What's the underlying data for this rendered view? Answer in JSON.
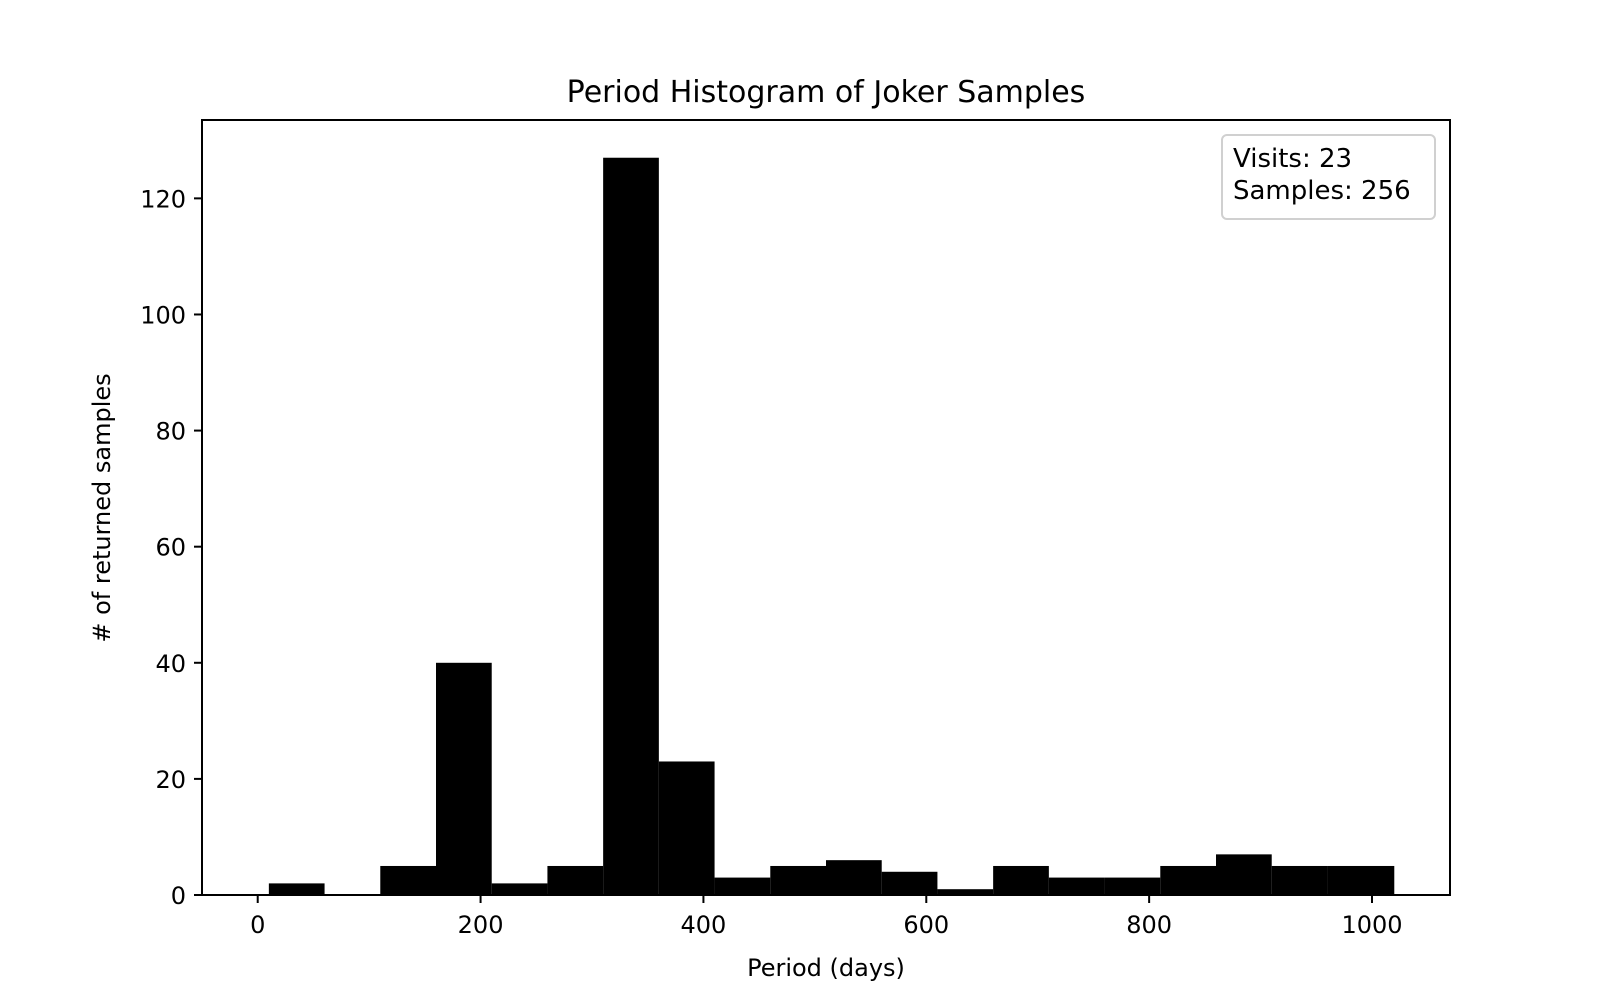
{
  "chart_data": {
    "type": "bar",
    "title": "Period Histogram of Joker Samples",
    "xlabel": "Period (days)",
    "ylabel": "# of returned samples",
    "xlim": [
      -50,
      1070
    ],
    "ylim": [
      0,
      133.5
    ],
    "xticks": [
      0,
      200,
      400,
      600,
      800,
      1000
    ],
    "yticks": [
      0,
      20,
      40,
      60,
      80,
      100,
      120
    ],
    "bins": [
      {
        "x0": 10,
        "x1": 60,
        "value": 2
      },
      {
        "x0": 60,
        "x1": 110,
        "value": 0
      },
      {
        "x0": 110,
        "x1": 160,
        "value": 5
      },
      {
        "x0": 160,
        "x1": 210,
        "value": 40
      },
      {
        "x0": 210,
        "x1": 260,
        "value": 2
      },
      {
        "x0": 260,
        "x1": 310,
        "value": 5
      },
      {
        "x0": 310,
        "x1": 360,
        "value": 127
      },
      {
        "x0": 360,
        "x1": 410,
        "value": 23
      },
      {
        "x0": 410,
        "x1": 460,
        "value": 3
      },
      {
        "x0": 460,
        "x1": 510,
        "value": 5
      },
      {
        "x0": 510,
        "x1": 560,
        "value": 6
      },
      {
        "x0": 560,
        "x1": 610,
        "value": 4
      },
      {
        "x0": 610,
        "x1": 660,
        "value": 1
      },
      {
        "x0": 660,
        "x1": 710,
        "value": 5
      },
      {
        "x0": 710,
        "x1": 760,
        "value": 3
      },
      {
        "x0": 760,
        "x1": 810,
        "value": 3
      },
      {
        "x0": 810,
        "x1": 860,
        "value": 5
      },
      {
        "x0": 860,
        "x1": 910,
        "value": 7
      },
      {
        "x0": 910,
        "x1": 960,
        "value": 5
      },
      {
        "x0": 960,
        "x1": 1020,
        "value": 5
      }
    ],
    "bar_color": "#000000",
    "grid": false,
    "legend_placement": "top-right",
    "annotation": [
      "Visits: 23",
      "Samples: 256"
    ]
  }
}
